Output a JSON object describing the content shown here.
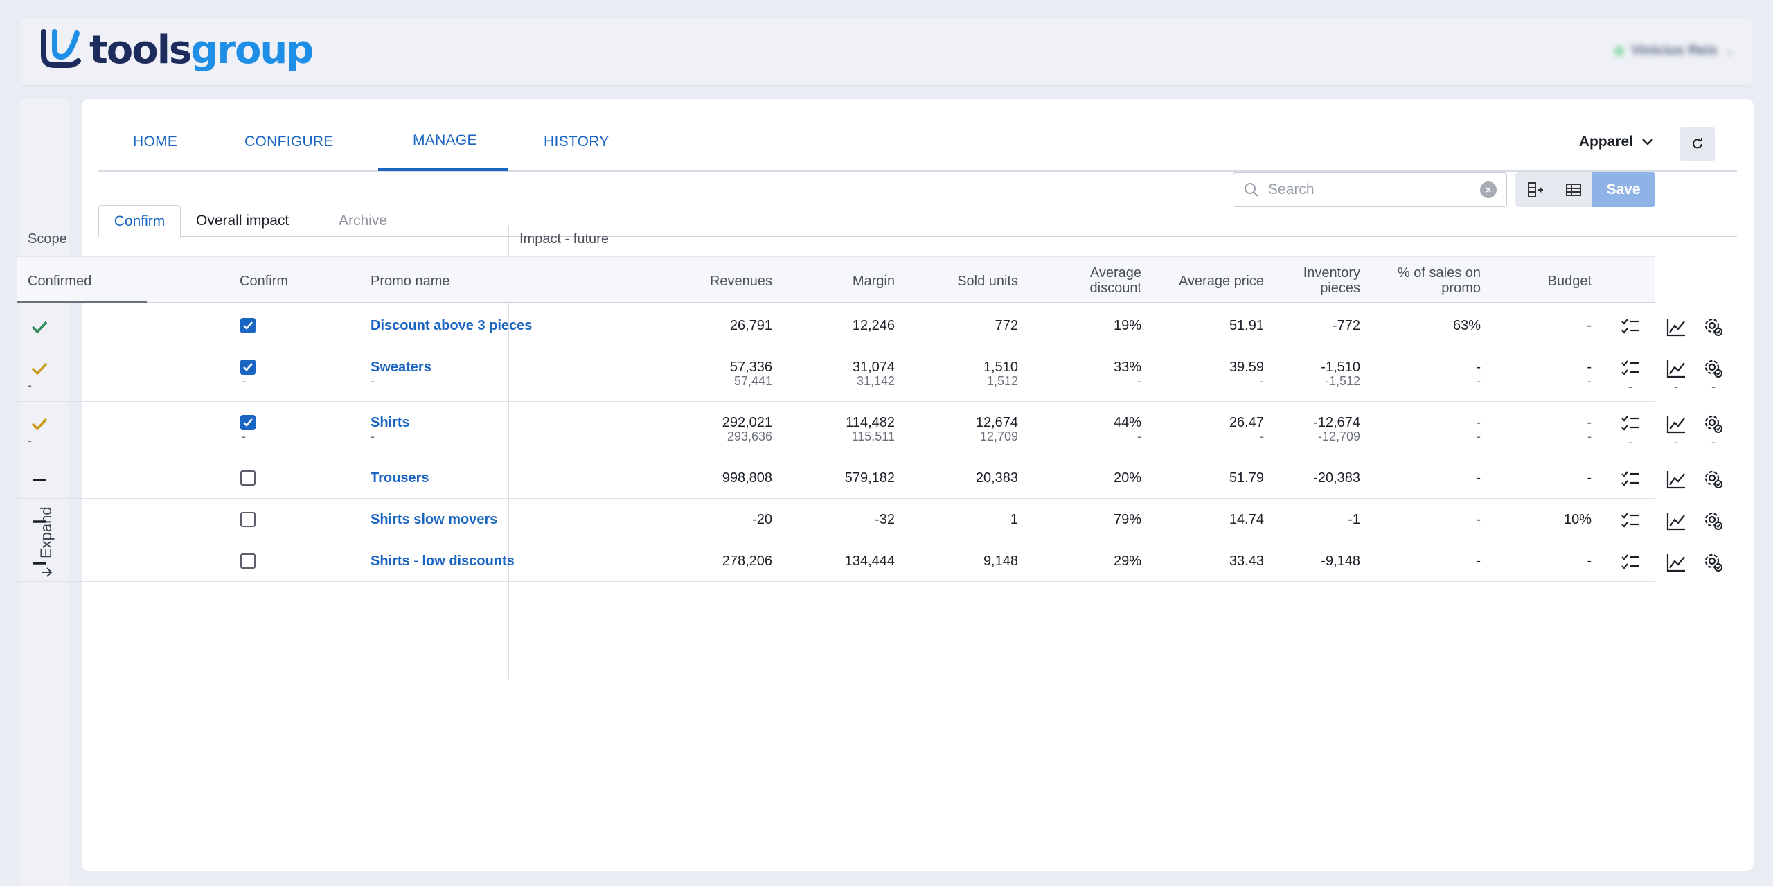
{
  "app": {
    "logo_part1": "tools",
    "logo_part2": "group",
    "user_name": "Vinicius Reis"
  },
  "sidebar": {
    "expand_label": "Expand"
  },
  "nav": {
    "items": [
      "HOME",
      "CONFIGURE",
      "MANAGE",
      "HISTORY"
    ],
    "active": "MANAGE"
  },
  "dataset": {
    "label": "Apparel"
  },
  "tabs": {
    "confirm": "Confirm",
    "overall": "Overall impact",
    "archive": "Archive"
  },
  "search": {
    "placeholder": "Search"
  },
  "toolbar": {
    "save_label": "Save"
  },
  "groups": {
    "scope": "Scope",
    "impact": "Impact - future"
  },
  "columns": {
    "confirmed": "Confirmed",
    "confirm": "Confirm",
    "promo_name": "Promo name",
    "revenues": "Revenues",
    "margin": "Margin",
    "sold_units": "Sold units",
    "avg_discount_1": "Average",
    "avg_discount_2": "discount",
    "avg_price": "Average price",
    "inventory_1": "Inventory",
    "inventory_2": "pieces",
    "pct_sales_1": "% of sales on",
    "pct_sales_2": "promo",
    "budget": "Budget"
  },
  "colors": {
    "accent": "#1a64c2",
    "confirmed_green": "#2e8b57",
    "pending_gold": "#c99a1a"
  },
  "rows": [
    {
      "status": "green-check",
      "status_sub": "",
      "checked": true,
      "confirm_sub": "",
      "name": "Discount above 3 pieces",
      "name_sub": "",
      "revenues": "26,791",
      "revenues_sub": "",
      "margin": "12,246",
      "margin_sub": "",
      "sold": "772",
      "sold_sub": "",
      "avg_disc": "19%",
      "avg_disc_sub": "",
      "avg_price": "51.91",
      "avg_price_sub": "",
      "inventory": "-772",
      "inventory_sub": "",
      "pct": "63%",
      "pct_sub": "",
      "budget": "-",
      "budget_sub": "",
      "act_sub": ""
    },
    {
      "status": "gold-check",
      "status_sub": "-",
      "checked": true,
      "confirm_sub": "-",
      "name": "Sweaters",
      "name_sub": "-",
      "revenues": "57,336",
      "revenues_sub": "57,441",
      "margin": "31,074",
      "margin_sub": "31,142",
      "sold": "1,510",
      "sold_sub": "1,512",
      "avg_disc": "33%",
      "avg_disc_sub": "-",
      "avg_price": "39.59",
      "avg_price_sub": "-",
      "inventory": "-1,510",
      "inventory_sub": "-1,512",
      "pct": "-",
      "pct_sub": "-",
      "budget": "-",
      "budget_sub": "-",
      "act_sub": "-"
    },
    {
      "status": "gold-check",
      "status_sub": "-",
      "checked": true,
      "confirm_sub": "-",
      "name": "Shirts",
      "name_sub": "-",
      "revenues": "292,021",
      "revenues_sub": "293,636",
      "margin": "114,482",
      "margin_sub": "115,511",
      "sold": "12,674",
      "sold_sub": "12,709",
      "avg_disc": "44%",
      "avg_disc_sub": "-",
      "avg_price": "26.47",
      "avg_price_sub": "-",
      "inventory": "-12,674",
      "inventory_sub": "-12,709",
      "pct": "-",
      "pct_sub": "-",
      "budget": "-",
      "budget_sub": "-",
      "act_sub": "-"
    },
    {
      "status": "dash",
      "status_sub": "",
      "checked": false,
      "confirm_sub": "",
      "name": "Trousers",
      "name_sub": "",
      "revenues": "998,808",
      "revenues_sub": "",
      "margin": "579,182",
      "margin_sub": "",
      "sold": "20,383",
      "sold_sub": "",
      "avg_disc": "20%",
      "avg_disc_sub": "",
      "avg_price": "51.79",
      "avg_price_sub": "",
      "inventory": "-20,383",
      "inventory_sub": "",
      "pct": "-",
      "pct_sub": "",
      "budget": "-",
      "budget_sub": "",
      "act_sub": ""
    },
    {
      "status": "dash",
      "status_sub": "",
      "checked": false,
      "confirm_sub": "",
      "name": "Shirts slow movers",
      "name_sub": "",
      "revenues": "-20",
      "revenues_sub": "",
      "margin": "-32",
      "margin_sub": "",
      "sold": "1",
      "sold_sub": "",
      "avg_disc": "79%",
      "avg_disc_sub": "",
      "avg_price": "14.74",
      "avg_price_sub": "",
      "inventory": "-1",
      "inventory_sub": "",
      "pct": "-",
      "pct_sub": "",
      "budget": "10%",
      "budget_sub": "",
      "act_sub": ""
    },
    {
      "status": "dash",
      "status_sub": "",
      "checked": false,
      "confirm_sub": "",
      "name": "Shirts - low discounts",
      "name_sub": "",
      "revenues": "278,206",
      "revenues_sub": "",
      "margin": "134,444",
      "margin_sub": "",
      "sold": "9,148",
      "sold_sub": "",
      "avg_disc": "29%",
      "avg_disc_sub": "",
      "avg_price": "33.43",
      "avg_price_sub": "",
      "inventory": "-9,148",
      "inventory_sub": "",
      "pct": "-",
      "pct_sub": "",
      "budget": "-",
      "budget_sub": "",
      "act_sub": ""
    }
  ]
}
